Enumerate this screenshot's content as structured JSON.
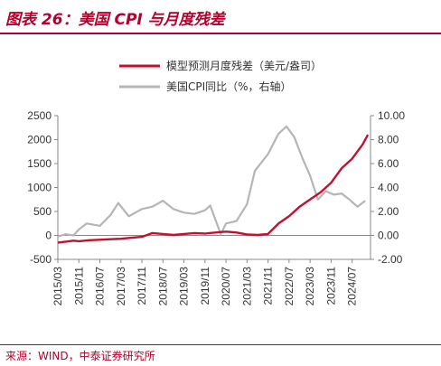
{
  "title": "图表 26：美国 CPI 与月度残差",
  "source": "来源：WIND，中泰证券研究所",
  "colors": {
    "accent": "#b3002d",
    "residual": "#c0112f",
    "cpi": "#b5b5b5"
  },
  "chart_data": {
    "type": "line",
    "legend_placement": "top-center",
    "grid": false,
    "x_tick_labels": [
      "2015/03",
      "2015/11",
      "2016/07",
      "2017/03",
      "2017/11",
      "2018/07",
      "2019/03",
      "2019/11",
      "2020/07",
      "2021/03",
      "2021/11",
      "2022/07",
      "2023/03",
      "2023/11",
      "2024/07"
    ],
    "y_left": {
      "lim": [
        -500,
        2500
      ],
      "ticks": [
        "-500",
        "0",
        "500",
        "1000",
        "1500",
        "2000",
        "2500"
      ]
    },
    "y_right": {
      "lim": [
        -2,
        10
      ],
      "ticks": [
        "-2.00",
        "0.00",
        "2.00",
        "4.00",
        "6.00",
        "8.00",
        "10.00"
      ]
    },
    "series": [
      {
        "name": "模型预测月度残差（美元/盎司）",
        "axis": "left",
        "points": [
          [
            "2015/03",
            -150
          ],
          [
            "2015/06",
            -130
          ],
          [
            "2015/09",
            -110
          ],
          [
            "2015/11",
            -120
          ],
          [
            "2016/03",
            -100
          ],
          [
            "2016/07",
            -90
          ],
          [
            "2016/11",
            -80
          ],
          [
            "2017/03",
            -70
          ],
          [
            "2017/07",
            -50
          ],
          [
            "2017/11",
            -30
          ],
          [
            "2018/03",
            50
          ],
          [
            "2018/07",
            30
          ],
          [
            "2018/11",
            10
          ],
          [
            "2019/03",
            30
          ],
          [
            "2019/07",
            50
          ],
          [
            "2019/11",
            40
          ],
          [
            "2020/03",
            60
          ],
          [
            "2020/07",
            80
          ],
          [
            "2020/11",
            60
          ],
          [
            "2021/03",
            20
          ],
          [
            "2021/07",
            10
          ],
          [
            "2021/11",
            30
          ],
          [
            "2022/03",
            250
          ],
          [
            "2022/07",
            400
          ],
          [
            "2022/11",
            600
          ],
          [
            "2023/03",
            750
          ],
          [
            "2023/07",
            900
          ],
          [
            "2023/11",
            1100
          ],
          [
            "2024/03",
            1400
          ],
          [
            "2024/07",
            1600
          ],
          [
            "2024/11",
            1900
          ],
          [
            "2025/01",
            2100
          ]
        ]
      },
      {
        "name": "美国CPI同比（%，右轴）",
        "axis": "right",
        "points": [
          [
            "2015/03",
            -0.1
          ],
          [
            "2015/06",
            0.1
          ],
          [
            "2015/09",
            0.0
          ],
          [
            "2015/11",
            0.5
          ],
          [
            "2016/02",
            1.0
          ],
          [
            "2016/07",
            0.8
          ],
          [
            "2016/11",
            1.7
          ],
          [
            "2017/02",
            2.7
          ],
          [
            "2017/06",
            1.6
          ],
          [
            "2017/11",
            2.2
          ],
          [
            "2018/03",
            2.4
          ],
          [
            "2018/07",
            2.9
          ],
          [
            "2018/11",
            2.2
          ],
          [
            "2019/03",
            1.9
          ],
          [
            "2019/07",
            1.8
          ],
          [
            "2019/11",
            2.1
          ],
          [
            "2020/01",
            2.5
          ],
          [
            "2020/05",
            0.1
          ],
          [
            "2020/07",
            1.0
          ],
          [
            "2020/11",
            1.2
          ],
          [
            "2021/03",
            2.6
          ],
          [
            "2021/06",
            5.4
          ],
          [
            "2021/11",
            6.8
          ],
          [
            "2022/03",
            8.5
          ],
          [
            "2022/06",
            9.1
          ],
          [
            "2022/09",
            8.2
          ],
          [
            "2022/12",
            6.5
          ],
          [
            "2023/03",
            5.0
          ],
          [
            "2023/06",
            3.0
          ],
          [
            "2023/09",
            3.7
          ],
          [
            "2023/12",
            3.4
          ],
          [
            "2024/03",
            3.5
          ],
          [
            "2024/06",
            3.0
          ],
          [
            "2024/09",
            2.4
          ],
          [
            "2024/12",
            2.9
          ]
        ]
      }
    ]
  }
}
